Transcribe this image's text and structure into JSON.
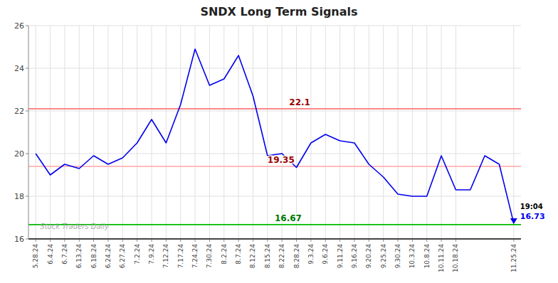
{
  "chart_data": {
    "type": "line",
    "title": "SNDX Long Term Signals",
    "categories": [
      "5.28.24",
      "6.4.24",
      "6.7.24",
      "6.13.24",
      "6.18.24",
      "6.24.24",
      "6.27.24",
      "7.2.24",
      "7.9.24",
      "7.12.24",
      "7.17.24",
      "7.24.24",
      "7.30.24",
      "8.2.24",
      "8.7.24",
      "8.12.24",
      "8.15.24",
      "8.22.24",
      "8.28.24",
      "9.3.24",
      "9.6.24",
      "9.11.24",
      "9.16.24",
      "9.20.24",
      "9.25.24",
      "9.30.24",
      "10.3.24",
      "10.8.24",
      "10.11.24",
      "10.18.24",
      null,
      null,
      null,
      "11.25.24"
    ],
    "values": [
      20.0,
      19.0,
      19.5,
      19.3,
      19.9,
      19.5,
      19.8,
      20.5,
      21.6,
      20.5,
      22.3,
      24.9,
      23.2,
      23.5,
      24.6,
      22.7,
      19.9,
      20.0,
      19.35,
      20.5,
      20.9,
      20.6,
      20.5,
      19.5,
      18.9,
      18.1,
      18.0,
      18.0,
      19.9,
      18.3,
      18.3,
      19.9,
      19.5,
      16.73
    ],
    "color": "#0000ee",
    "ylim": [
      16,
      26
    ],
    "yticks": [
      16,
      18,
      20,
      22,
      24,
      26
    ],
    "grid": true,
    "reference_lines": [
      {
        "value": 22.1,
        "color": "#ff8888",
        "label": "22.1",
        "label_color": "#990000"
      },
      {
        "value": 19.4,
        "color": "#ffbbbb",
        "label": "19.35",
        "label_color": "#990000"
      },
      {
        "value": 16.67,
        "color": "#00bb00",
        "label": "16.67",
        "label_color": "#007700"
      }
    ],
    "annotations": [
      {
        "text": "19:04",
        "color": "#000000"
      },
      {
        "text": "16.73",
        "color": "#0000ee"
      },
      {
        "text": "Stock Traders Daily",
        "color": "#aaaaaa"
      }
    ]
  }
}
